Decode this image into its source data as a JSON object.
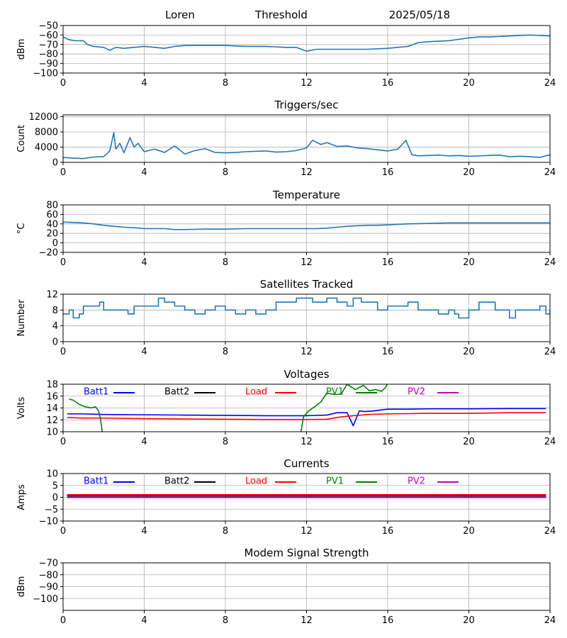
{
  "header": {
    "station": "Loren",
    "label": "Threshold",
    "date": "2025/05/18"
  },
  "colors": {
    "line": "#1f77b4",
    "grid": "#b0b0b0",
    "Batt1": "#0000ff",
    "Batt2": "#000000",
    "Load": "#ff0000",
    "PV1": "#008000",
    "PV2": "#bf00bf"
  },
  "chart_data": [
    {
      "type": "line",
      "title": "",
      "ylabel": "dBm",
      "ylim": [
        -100,
        -50
      ],
      "yticks": [
        -100,
        -90,
        -80,
        -70,
        -60,
        -50
      ],
      "xlim": [
        0,
        24
      ],
      "xticks": [
        0,
        4,
        8,
        12,
        16,
        20,
        24
      ],
      "grid": true,
      "series": [
        {
          "x": [
            0,
            0.3,
            0.6,
            1.0,
            1.2,
            1.5,
            2.0,
            2.3,
            2.6,
            3.0,
            3.5,
            4.0,
            4.5,
            5.0,
            5.5,
            6.0,
            7.0,
            8.0,
            9.0,
            10.0,
            11.0,
            11.5,
            12.0,
            12.5,
            13.0,
            14.0,
            15.0,
            16.0,
            16.5,
            17.0,
            17.5,
            18.0,
            19.0,
            20.0,
            20.5,
            21.0,
            22.0,
            23.0,
            24.0
          ],
          "y": [
            -62,
            -65,
            -66,
            -66,
            -70,
            -72,
            -73,
            -76,
            -73,
            -74,
            -73,
            -72,
            -73,
            -74,
            -72,
            -71,
            -71,
            -71,
            -72,
            -72,
            -73,
            -73,
            -77,
            -75,
            -75,
            -75,
            -75,
            -74,
            -73,
            -72,
            -68,
            -67,
            -66,
            -63,
            -62,
            -62,
            -61,
            -60,
            -61
          ]
        }
      ]
    },
    {
      "type": "line",
      "title": "Triggers/sec",
      "ylabel": "Count",
      "ylim": [
        0,
        12500
      ],
      "yticks": [
        0,
        4000,
        8000,
        12000
      ],
      "xlim": [
        0,
        24
      ],
      "xticks": [
        0,
        4,
        8,
        12,
        16,
        20,
        24
      ],
      "grid": true,
      "series": [
        {
          "x": [
            0,
            0.5,
            1.0,
            1.5,
            2.0,
            2.3,
            2.5,
            2.6,
            2.8,
            3.0,
            3.3,
            3.5,
            3.7,
            4.0,
            4.5,
            5.0,
            5.5,
            6.0,
            6.5,
            7.0,
            7.5,
            8.0,
            8.5,
            9.0,
            9.5,
            10.0,
            10.5,
            11.0,
            11.5,
            12.0,
            12.3,
            12.7,
            13.0,
            13.5,
            14.0,
            14.5,
            15.0,
            15.5,
            16.0,
            16.5,
            16.9,
            17.2,
            17.5,
            18.0,
            18.5,
            19.0,
            19.5,
            20.0,
            20.5,
            21.0,
            21.5,
            22.0,
            22.5,
            23.0,
            23.5,
            24.0
          ],
          "y": [
            1300,
            1100,
            1000,
            1400,
            1500,
            3000,
            7800,
            3500,
            5000,
            2500,
            6500,
            4000,
            5000,
            2800,
            3500,
            2600,
            4300,
            2200,
            3100,
            3600,
            2600,
            2500,
            2600,
            2800,
            2900,
            3000,
            2700,
            2800,
            3100,
            3800,
            5800,
            4700,
            5200,
            4200,
            4300,
            3800,
            3600,
            3300,
            3000,
            3500,
            5800,
            2000,
            1700,
            1800,
            1900,
            1700,
            1800,
            1600,
            1700,
            1800,
            1900,
            1500,
            1600,
            1500,
            1300,
            2000
          ]
        }
      ]
    },
    {
      "type": "line",
      "title": "Temperature",
      "ylabel": "°C",
      "ylim": [
        -20,
        80
      ],
      "yticks": [
        -20,
        0,
        20,
        40,
        60,
        80
      ],
      "xlim": [
        0,
        24
      ],
      "xticks": [
        0,
        4,
        8,
        12,
        16,
        20,
        24
      ],
      "grid": true,
      "series": [
        {
          "x": [
            0,
            0.5,
            1.0,
            1.5,
            2.0,
            2.5,
            3.0,
            3.5,
            4.0,
            4.5,
            5.0,
            5.5,
            6.0,
            7.0,
            8.0,
            9.0,
            10.0,
            11.0,
            12.0,
            12.5,
            13.0,
            13.5,
            14.0,
            14.5,
            15.0,
            15.5,
            16.0,
            16.5,
            17.0,
            18.0,
            19.0,
            20.0,
            21.0,
            22.0,
            23.0,
            24.0
          ],
          "y": [
            44,
            43,
            42,
            40,
            37,
            35,
            33,
            32,
            30,
            30,
            30,
            28,
            28,
            29,
            29,
            30,
            30,
            30,
            30,
            30,
            31,
            33,
            35,
            36,
            37,
            37,
            38,
            39,
            40,
            41,
            42,
            42,
            42,
            42,
            42,
            42
          ]
        }
      ]
    },
    {
      "type": "line",
      "title": "Satellites Tracked",
      "ylabel": "Number",
      "ylim": [
        0,
        12
      ],
      "yticks": [
        0,
        4,
        8,
        12
      ],
      "xlim": [
        0,
        24
      ],
      "xticks": [
        0,
        4,
        8,
        12,
        16,
        20,
        24
      ],
      "grid": true,
      "series": [
        {
          "step": true,
          "x": [
            0,
            0.3,
            0.5,
            0.8,
            1.0,
            1.5,
            1.8,
            2.0,
            2.5,
            3.2,
            3.5,
            4.0,
            4.3,
            4.7,
            5.0,
            5.5,
            6.0,
            6.3,
            6.5,
            7.0,
            7.2,
            7.5,
            8.0,
            8.3,
            8.5,
            9.0,
            9.2,
            9.5,
            10.0,
            10.3,
            10.5,
            11.0,
            11.5,
            12.0,
            12.3,
            12.7,
            13.0,
            13.5,
            14.0,
            14.3,
            14.7,
            15.0,
            15.5,
            16.0,
            16.5,
            16.8,
            17.0,
            17.5,
            17.8,
            18.2,
            18.5,
            19.0,
            19.3,
            19.5,
            20.0,
            20.5,
            21.0,
            21.3,
            21.5,
            22.0,
            22.3,
            22.5,
            23.0,
            23.5,
            23.8,
            24.0
          ],
          "y": [
            7,
            8,
            6,
            7,
            9,
            9,
            10,
            8,
            8,
            7,
            9,
            9,
            9,
            11,
            10,
            9,
            8,
            8,
            7,
            8,
            8,
            9,
            8,
            8,
            7,
            8,
            8,
            7,
            8,
            8,
            10,
            10,
            11,
            11,
            10,
            10,
            11,
            10,
            9,
            11,
            10,
            10,
            8,
            9,
            9,
            9,
            10,
            8,
            8,
            8,
            7,
            8,
            7,
            6,
            8,
            10,
            10,
            8,
            8,
            6,
            8,
            8,
            8,
            9,
            7,
            8
          ]
        }
      ]
    },
    {
      "type": "line",
      "title": "Voltages",
      "ylabel": "Volts",
      "ylim": [
        10,
        18
      ],
      "yticks": [
        10,
        12,
        14,
        16,
        18
      ],
      "xlim": [
        0,
        24
      ],
      "xticks": [
        0,
        4,
        8,
        12,
        16,
        20,
        24
      ],
      "grid": true,
      "legend": "top",
      "series": [
        {
          "name": "Batt1",
          "color": "#0000ff",
          "x": [
            0.2,
            1.0,
            2.0,
            4.0,
            6.0,
            8.0,
            10.0,
            12.0,
            13.0,
            13.5,
            14.0,
            14.3,
            14.6,
            14.9,
            15.3,
            16.0,
            16.3,
            17.0,
            18.0,
            20.0,
            22.0,
            23.8
          ],
          "y": [
            13.0,
            13.0,
            12.9,
            12.85,
            12.8,
            12.75,
            12.7,
            12.7,
            12.8,
            13.2,
            13.2,
            11.0,
            13.5,
            13.4,
            13.5,
            13.8,
            13.8,
            13.8,
            13.85,
            13.85,
            13.9,
            13.9
          ]
        },
        {
          "name": "Batt2",
          "color": "#000000",
          "x": [],
          "y": []
        },
        {
          "name": "Load",
          "color": "#ff0000",
          "x": [
            0.2,
            1.0,
            2.0,
            4.0,
            6.0,
            8.0,
            10.0,
            12.0,
            13.0,
            13.5,
            14.0,
            15.0,
            16.0,
            18.0,
            20.0,
            22.0,
            23.8
          ],
          "y": [
            12.4,
            12.3,
            12.3,
            12.2,
            12.15,
            12.1,
            12.05,
            12.05,
            12.1,
            12.4,
            12.6,
            12.9,
            13.0,
            13.1,
            13.1,
            13.2,
            13.2
          ]
        },
        {
          "name": "PV1",
          "color": "#008000",
          "x": [
            0.3,
            0.5,
            0.8,
            1.1,
            1.4,
            1.6,
            1.75,
            1.85,
            1.95,
            11.7,
            11.85,
            12.1,
            12.4,
            12.7,
            13.0,
            13.3,
            13.7,
            14.0,
            14.4,
            14.8,
            15.1,
            15.4,
            15.7,
            15.9,
            16.0
          ],
          "y": [
            15.5,
            15.3,
            14.6,
            14.2,
            14.0,
            14.2,
            13.5,
            12.0,
            9.5,
            9.5,
            12.5,
            13.5,
            14.2,
            15.0,
            16.5,
            16.3,
            16.3,
            18.0,
            17.1,
            17.8,
            16.9,
            17.1,
            16.8,
            17.5,
            18.2
          ]
        },
        {
          "name": "PV2",
          "color": "#bf00bf",
          "x": [],
          "y": []
        }
      ]
    },
    {
      "type": "line",
      "title": "Currents",
      "ylabel": "Amps",
      "ylim": [
        -10,
        10
      ],
      "yticks": [
        -10,
        -5,
        0,
        5,
        10
      ],
      "xlim": [
        0,
        24
      ],
      "xticks": [
        0,
        4,
        8,
        12,
        16,
        20,
        24
      ],
      "grid": true,
      "legend": "top",
      "series": [
        {
          "name": "Batt1",
          "color": "#0000ff",
          "x": [
            0.2,
            23.8
          ],
          "y": [
            0.4,
            0.4
          ]
        },
        {
          "name": "Batt2",
          "color": "#000000",
          "x": [
            0.2,
            23.8
          ],
          "y": [
            0.7,
            0.7
          ]
        },
        {
          "name": "Load",
          "color": "#ff0000",
          "x": [
            0.2,
            23.8
          ],
          "y": [
            1.0,
            1.0
          ]
        },
        {
          "name": "PV1",
          "color": "#008000",
          "x": [
            0.2,
            23.8
          ],
          "y": [
            0.2,
            0.2
          ]
        },
        {
          "name": "PV2",
          "color": "#bf00bf",
          "x": [
            0.2,
            23.8
          ],
          "y": [
            0.0,
            0.0
          ]
        }
      ]
    },
    {
      "type": "line",
      "title": "Modem Signal Strength",
      "ylabel": "dBm",
      "ylim": [
        -110,
        -70
      ],
      "yticks": [
        -100,
        -90,
        -80,
        -70
      ],
      "xlim": [
        0,
        24
      ],
      "xticks": [
        0,
        4,
        8,
        12,
        16,
        20,
        24
      ],
      "grid": true,
      "series": []
    }
  ]
}
